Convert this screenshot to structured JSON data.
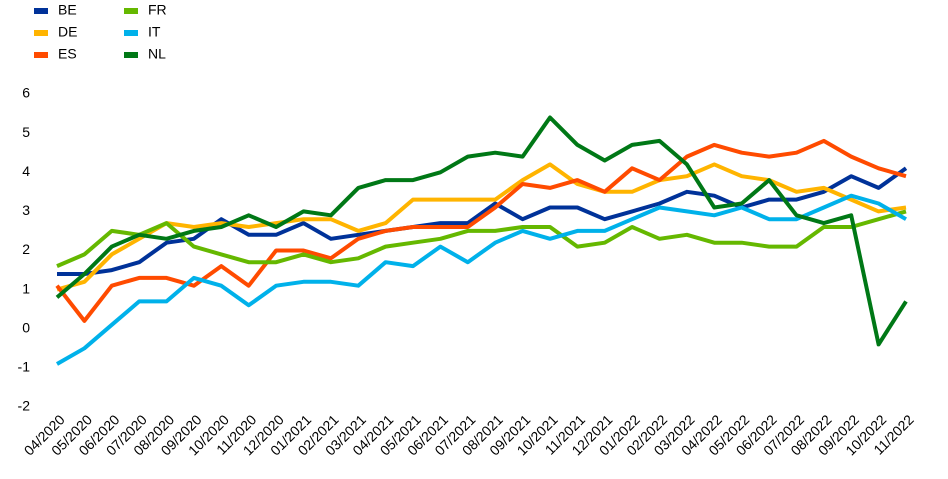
{
  "chart_data": {
    "type": "line",
    "categories": [
      "04/2020",
      "05/2020",
      "06/2020",
      "07/2020",
      "08/2020",
      "09/2020",
      "10/2020",
      "11/2020",
      "12/2020",
      "01/2021",
      "02/2021",
      "03/2021",
      "04/2021",
      "05/2021",
      "06/2021",
      "07/2021",
      "08/2021",
      "09/2021",
      "10/2021",
      "11/2021",
      "12/2021",
      "01/2022",
      "02/2022",
      "03/2022",
      "04/2022",
      "05/2022",
      "06/2022",
      "07/2022",
      "08/2022",
      "09/2022",
      "10/2022",
      "11/2022"
    ],
    "series": [
      {
        "name": "BE",
        "color": "#003299",
        "values": [
          1.4,
          1.4,
          1.5,
          1.7,
          2.2,
          2.3,
          2.8,
          2.4,
          2.4,
          2.7,
          2.3,
          2.4,
          2.5,
          2.6,
          2.7,
          2.7,
          3.2,
          2.8,
          3.1,
          3.1,
          2.8,
          3.0,
          3.2,
          3.5,
          3.4,
          3.1,
          3.3,
          3.3,
          3.5,
          3.9,
          3.6,
          4.1
        ]
      },
      {
        "name": "DE",
        "color": "#ffb400",
        "values": [
          1.0,
          1.2,
          1.9,
          2.3,
          2.7,
          2.6,
          2.7,
          2.6,
          2.7,
          2.8,
          2.8,
          2.5,
          2.7,
          3.3,
          3.3,
          3.3,
          3.3,
          3.8,
          4.2,
          3.7,
          3.5,
          3.5,
          3.8,
          3.9,
          4.2,
          3.9,
          3.8,
          3.5,
          3.6,
          3.3,
          3.0,
          3.1
        ]
      },
      {
        "name": "ES",
        "color": "#ff4b00",
        "values": [
          1.1,
          0.2,
          1.1,
          1.3,
          1.3,
          1.1,
          1.6,
          1.1,
          2.0,
          2.0,
          1.8,
          2.3,
          2.5,
          2.6,
          2.6,
          2.6,
          3.1,
          3.7,
          3.6,
          3.8,
          3.5,
          4.1,
          3.8,
          4.4,
          4.7,
          4.5,
          4.4,
          4.5,
          4.8,
          4.4,
          4.1,
          3.9
        ]
      },
      {
        "name": "FR",
        "color": "#65b800",
        "values": [
          1.6,
          1.9,
          2.5,
          2.4,
          2.7,
          2.1,
          1.9,
          1.7,
          1.7,
          1.9,
          1.7,
          1.8,
          2.1,
          2.2,
          2.3,
          2.5,
          2.5,
          2.6,
          2.6,
          2.1,
          2.2,
          2.6,
          2.3,
          2.4,
          2.2,
          2.2,
          2.1,
          2.1,
          2.6,
          2.6,
          2.8,
          3.0
        ]
      },
      {
        "name": "IT",
        "color": "#00b1ea",
        "values": [
          -0.9,
          -0.5,
          0.1,
          0.7,
          0.7,
          1.3,
          1.1,
          0.6,
          1.1,
          1.2,
          1.2,
          1.1,
          1.7,
          1.6,
          2.1,
          1.7,
          2.2,
          2.5,
          2.3,
          2.5,
          2.5,
          2.8,
          3.1,
          3.0,
          2.9,
          3.1,
          2.8,
          2.8,
          3.1,
          3.4,
          3.2,
          2.8
        ]
      },
      {
        "name": "NL",
        "color": "#007816",
        "values": [
          0.8,
          1.4,
          2.1,
          2.4,
          2.3,
          2.5,
          2.6,
          2.9,
          2.6,
          3.0,
          2.9,
          3.6,
          3.8,
          3.8,
          4.0,
          4.4,
          4.5,
          4.4,
          5.4,
          4.7,
          4.3,
          4.7,
          4.8,
          4.2,
          3.1,
          3.2,
          3.8,
          2.9,
          2.7,
          2.9,
          -0.4,
          0.7
        ]
      }
    ],
    "ylim": [
      -2,
      6
    ],
    "yticks": [
      -2,
      -1,
      0,
      1,
      2,
      3,
      4,
      5,
      6
    ],
    "grid": false
  }
}
